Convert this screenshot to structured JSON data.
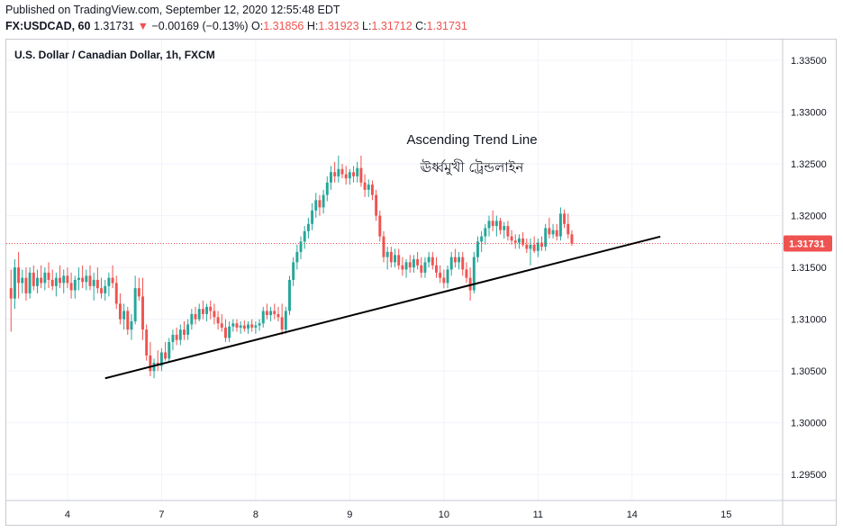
{
  "header": {
    "published": "Published on TradingView.com, September 12, 2020 12:55:48 EDT",
    "symbol": "FX:USDCAD, 60",
    "last": "1.31731",
    "change_arrow": "▼",
    "change": "−0.00169 (−0.13%)",
    "o_label": "O:",
    "o_value": "1.31856",
    "h_label": "H:",
    "h_value": "1.31923",
    "l_label": "L:",
    "l_value": "1.31712",
    "c_label": "C:",
    "c_value": "1.31731"
  },
  "colors": {
    "up": "#26a69a",
    "down": "#ef5350",
    "trendline": "#000000",
    "price_tag": "#ef5350",
    "border": "#c7cad1"
  },
  "chart_data": {
    "type": "candlestick",
    "title": "U.S. Dollar / Canadian Dollar, 1h, FXCM",
    "ylim": [
      1.2925,
      1.337
    ],
    "y_ticks": [
      "1.33500",
      "1.33000",
      "1.32500",
      "1.32000",
      "1.31500",
      "1.31000",
      "1.30500",
      "1.30000",
      "1.29500"
    ],
    "x_ticks": [
      "4",
      "7",
      "8",
      "9",
      "10",
      "11",
      "14",
      "15"
    ],
    "x_tick_index": [
      4,
      14,
      24,
      34,
      44,
      54,
      64,
      74
    ],
    "x_range": [
      -2.5,
      80
    ],
    "last_price": "1.31731",
    "annotations": [
      "Ascending Trend Line",
      "ঊর্ধ্বমুখী ট্রেন্ডলাইন"
    ],
    "trendline": {
      "start": [
        8.0,
        1.3043
      ],
      "end": [
        67.0,
        1.31798
      ]
    },
    "candles": [
      [
        -2.0,
        1.313,
        1.3148,
        1.3088,
        1.312
      ],
      [
        -1.6,
        1.312,
        1.3158,
        1.311,
        1.315
      ],
      [
        -1.2,
        1.315,
        1.3165,
        1.312,
        1.3135
      ],
      [
        -0.8,
        1.3135,
        1.3148,
        1.3125,
        1.314
      ],
      [
        -0.4,
        1.314,
        1.315,
        1.3118,
        1.3125
      ],
      [
        0.0,
        1.3125,
        1.315,
        1.312,
        1.3145
      ],
      [
        0.4,
        1.3145,
        1.3152,
        1.3128,
        1.3132
      ],
      [
        0.8,
        1.3132,
        1.3148,
        1.3125,
        1.314
      ],
      [
        1.2,
        1.314,
        1.3152,
        1.313,
        1.3135
      ],
      [
        1.6,
        1.3135,
        1.315,
        1.3128,
        1.3145
      ],
      [
        2.0,
        1.3145,
        1.3155,
        1.313,
        1.3138
      ],
      [
        2.4,
        1.3138,
        1.3148,
        1.3128,
        1.3132
      ],
      [
        2.8,
        1.3132,
        1.3145,
        1.3122,
        1.314
      ],
      [
        3.2,
        1.314,
        1.3152,
        1.313,
        1.3135
      ],
      [
        3.6,
        1.3135,
        1.3148,
        1.3125,
        1.3142
      ],
      [
        4.0,
        1.3142,
        1.315,
        1.313,
        1.3135
      ],
      [
        4.4,
        1.3135,
        1.3145,
        1.312,
        1.3128
      ],
      [
        4.8,
        1.3128,
        1.3142,
        1.312,
        1.3138
      ],
      [
        5.2,
        1.3138,
        1.315,
        1.3128,
        1.314
      ],
      [
        5.6,
        1.314,
        1.3152,
        1.313,
        1.3136
      ],
      [
        6.0,
        1.3136,
        1.3148,
        1.3128,
        1.3142
      ],
      [
        6.4,
        1.3142,
        1.3152,
        1.3128,
        1.3132
      ],
      [
        6.8,
        1.3132,
        1.3145,
        1.3118,
        1.3138
      ],
      [
        7.2,
        1.3138,
        1.315,
        1.3125,
        1.313
      ],
      [
        7.6,
        1.313,
        1.314,
        1.312,
        1.3125
      ],
      [
        8.0,
        1.3125,
        1.3138,
        1.3118,
        1.3132
      ],
      [
        8.4,
        1.3132,
        1.3145,
        1.3122,
        1.314
      ],
      [
        8.8,
        1.314,
        1.3152,
        1.313,
        1.3135
      ],
      [
        9.2,
        1.3135,
        1.3142,
        1.311,
        1.3115
      ],
      [
        9.6,
        1.3115,
        1.3125,
        1.3095,
        1.31
      ],
      [
        10.0,
        1.31,
        1.3115,
        1.309,
        1.3108
      ],
      [
        10.4,
        1.3108,
        1.3112,
        1.3085,
        1.309
      ],
      [
        10.8,
        1.309,
        1.3105,
        1.308,
        1.3098
      ],
      [
        11.2,
        1.3098,
        1.3142,
        1.3095,
        1.313
      ],
      [
        11.6,
        1.313,
        1.314,
        1.3118,
        1.3122
      ],
      [
        12.0,
        1.3122,
        1.314,
        1.308,
        1.309
      ],
      [
        12.4,
        1.309,
        1.3095,
        1.306,
        1.3065
      ],
      [
        12.8,
        1.3065,
        1.3078,
        1.3045,
        1.305
      ],
      [
        13.2,
        1.305,
        1.3062,
        1.3043,
        1.3058
      ],
      [
        13.6,
        1.3058,
        1.307,
        1.305,
        1.3055
      ],
      [
        14.0,
        1.3055,
        1.3072,
        1.305,
        1.3068
      ],
      [
        14.4,
        1.3068,
        1.3078,
        1.306,
        1.3062
      ],
      [
        14.8,
        1.3062,
        1.3082,
        1.3058,
        1.3078
      ],
      [
        15.2,
        1.3078,
        1.309,
        1.307,
        1.3085
      ],
      [
        15.6,
        1.3085,
        1.3092,
        1.3075,
        1.308
      ],
      [
        16.0,
        1.308,
        1.3095,
        1.3075,
        1.309
      ],
      [
        16.4,
        1.309,
        1.3098,
        1.308,
        1.3085
      ],
      [
        16.8,
        1.3085,
        1.31,
        1.308,
        1.3095
      ],
      [
        17.2,
        1.3095,
        1.311,
        1.309,
        1.3105
      ],
      [
        17.6,
        1.3105,
        1.3112,
        1.3095,
        1.31
      ],
      [
        18.0,
        1.31,
        1.3115,
        1.3098,
        1.311
      ],
      [
        18.4,
        1.311,
        1.3118,
        1.31,
        1.3105
      ],
      [
        18.8,
        1.3105,
        1.3115,
        1.3098,
        1.3112
      ],
      [
        19.2,
        1.3112,
        1.3118,
        1.31,
        1.3108
      ],
      [
        19.6,
        1.3108,
        1.3115,
        1.3095,
        1.3102
      ],
      [
        20.0,
        1.3102,
        1.3108,
        1.309,
        1.3096
      ],
      [
        20.4,
        1.3096,
        1.3105,
        1.3088,
        1.3092
      ],
      [
        20.8,
        1.3092,
        1.31,
        1.3078,
        1.3082
      ],
      [
        21.2,
        1.3082,
        1.3098,
        1.3078,
        1.3093
      ],
      [
        21.6,
        1.3093,
        1.31,
        1.3088,
        1.3096
      ],
      [
        22.0,
        1.3096,
        1.31,
        1.3088,
        1.3092
      ],
      [
        22.4,
        1.3092,
        1.3098,
        1.3086,
        1.3094
      ],
      [
        22.8,
        1.3094,
        1.3099,
        1.3088,
        1.3091
      ],
      [
        23.2,
        1.3091,
        1.3098,
        1.3086,
        1.3095
      ],
      [
        23.6,
        1.3095,
        1.31,
        1.3088,
        1.3092
      ],
      [
        24.0,
        1.3092,
        1.3098,
        1.3086,
        1.3094
      ],
      [
        24.4,
        1.3094,
        1.31,
        1.3089,
        1.3096
      ],
      [
        24.8,
        1.3096,
        1.3112,
        1.3092,
        1.3108
      ],
      [
        25.2,
        1.3108,
        1.3115,
        1.31,
        1.3104
      ],
      [
        25.6,
        1.3104,
        1.3112,
        1.3098,
        1.3108
      ],
      [
        26.0,
        1.3108,
        1.3115,
        1.31,
        1.3105
      ],
      [
        26.4,
        1.3105,
        1.3112,
        1.3098,
        1.3102
      ],
      [
        26.8,
        1.3102,
        1.3115,
        1.3085,
        1.309
      ],
      [
        27.2,
        1.309,
        1.3112,
        1.3086,
        1.3108
      ],
      [
        27.6,
        1.3108,
        1.3142,
        1.3104,
        1.3138
      ],
      [
        28.0,
        1.3138,
        1.316,
        1.3132,
        1.3155
      ],
      [
        28.4,
        1.3155,
        1.3172,
        1.3148,
        1.3165
      ],
      [
        28.8,
        1.3165,
        1.318,
        1.3158,
        1.3175
      ],
      [
        29.2,
        1.3175,
        1.319,
        1.3168,
        1.3185
      ],
      [
        29.6,
        1.3185,
        1.3198,
        1.3178,
        1.3192
      ],
      [
        30.0,
        1.3192,
        1.3212,
        1.3186,
        1.3205
      ],
      [
        30.4,
        1.3205,
        1.3222,
        1.3198,
        1.3215
      ],
      [
        30.8,
        1.3215,
        1.322,
        1.32,
        1.3208
      ],
      [
        31.2,
        1.3208,
        1.3225,
        1.3202,
        1.322
      ],
      [
        31.6,
        1.322,
        1.3238,
        1.3214,
        1.3232
      ],
      [
        32.0,
        1.3232,
        1.3248,
        1.3225,
        1.3242
      ],
      [
        32.4,
        1.3242,
        1.3252,
        1.3232,
        1.3238
      ],
      [
        32.8,
        1.3238,
        1.3258,
        1.3232,
        1.3245
      ],
      [
        33.2,
        1.3245,
        1.325,
        1.3236,
        1.324
      ],
      [
        33.6,
        1.324,
        1.3248,
        1.323,
        1.3236
      ],
      [
        34.0,
        1.3236,
        1.3245,
        1.323,
        1.3242
      ],
      [
        34.4,
        1.3242,
        1.3248,
        1.3232,
        1.3238
      ],
      [
        34.8,
        1.3238,
        1.3252,
        1.3232,
        1.3246
      ],
      [
        35.2,
        1.3246,
        1.3258,
        1.3228,
        1.3232
      ],
      [
        35.6,
        1.3232,
        1.324,
        1.3218,
        1.3225
      ],
      [
        36.0,
        1.3225,
        1.3235,
        1.3218,
        1.323
      ],
      [
        36.4,
        1.323,
        1.3234,
        1.3215,
        1.322
      ],
      [
        36.8,
        1.322,
        1.3225,
        1.3195,
        1.32
      ],
      [
        37.2,
        1.32,
        1.3205,
        1.3175,
        1.318
      ],
      [
        37.6,
        1.318,
        1.3185,
        1.3155,
        1.316
      ],
      [
        38.0,
        1.316,
        1.317,
        1.3148,
        1.3165
      ],
      [
        38.4,
        1.3165,
        1.317,
        1.315,
        1.3155
      ],
      [
        38.8,
        1.3155,
        1.3168,
        1.315,
        1.3162
      ],
      [
        39.2,
        1.3162,
        1.3168,
        1.3148,
        1.3152
      ],
      [
        39.6,
        1.3152,
        1.316,
        1.3142,
        1.3148
      ],
      [
        40.0,
        1.3148,
        1.3158,
        1.314,
        1.3155
      ],
      [
        40.4,
        1.3155,
        1.3162,
        1.3145,
        1.315
      ],
      [
        40.8,
        1.315,
        1.3162,
        1.3145,
        1.3158
      ],
      [
        41.2,
        1.3158,
        1.3165,
        1.3148,
        1.3152
      ],
      [
        41.6,
        1.3152,
        1.316,
        1.314,
        1.3145
      ],
      [
        42.0,
        1.3145,
        1.316,
        1.314,
        1.3155
      ],
      [
        42.4,
        1.3155,
        1.3165,
        1.315,
        1.316
      ],
      [
        42.8,
        1.316,
        1.3165,
        1.3148,
        1.3152
      ],
      [
        43.2,
        1.3152,
        1.316,
        1.314,
        1.3145
      ],
      [
        43.6,
        1.3145,
        1.3152,
        1.3135,
        1.314
      ],
      [
        44.0,
        1.314,
        1.3148,
        1.313,
        1.3135
      ],
      [
        44.4,
        1.3135,
        1.3152,
        1.313,
        1.3148
      ],
      [
        44.8,
        1.3148,
        1.3165,
        1.3142,
        1.316
      ],
      [
        45.2,
        1.316,
        1.3168,
        1.315,
        1.3155
      ],
      [
        45.6,
        1.3155,
        1.3165,
        1.3148,
        1.316
      ],
      [
        46.0,
        1.316,
        1.3165,
        1.3142,
        1.3148
      ],
      [
        46.4,
        1.3148,
        1.3155,
        1.3135,
        1.314
      ],
      [
        46.8,
        1.314,
        1.315,
        1.3118,
        1.3128
      ],
      [
        47.2,
        1.3128,
        1.3165,
        1.3125,
        1.316
      ],
      [
        47.6,
        1.316,
        1.318,
        1.3155,
        1.3175
      ],
      [
        48.0,
        1.3175,
        1.3185,
        1.3165,
        1.318
      ],
      [
        48.4,
        1.318,
        1.3192,
        1.3172,
        1.3188
      ],
      [
        48.8,
        1.3188,
        1.32,
        1.318,
        1.3195
      ],
      [
        49.2,
        1.3195,
        1.3205,
        1.3185,
        1.319
      ],
      [
        49.6,
        1.319,
        1.32,
        1.318,
        1.3195
      ],
      [
        50.0,
        1.3195,
        1.3198,
        1.3182,
        1.3186
      ],
      [
        50.4,
        1.3186,
        1.3194,
        1.3178,
        1.319
      ],
      [
        50.8,
        1.319,
        1.3195,
        1.3176,
        1.318
      ],
      [
        51.2,
        1.318,
        1.3186,
        1.3172,
        1.3176
      ],
      [
        51.6,
        1.3176,
        1.3182,
        1.3168,
        1.3174
      ],
      [
        52.0,
        1.3174,
        1.3182,
        1.3168,
        1.3178
      ],
      [
        52.4,
        1.3178,
        1.3184,
        1.317,
        1.3172
      ],
      [
        52.8,
        1.3172,
        1.3178,
        1.3164,
        1.3168
      ],
      [
        53.2,
        1.3168,
        1.3178,
        1.3152,
        1.3172
      ],
      [
        53.6,
        1.3172,
        1.318,
        1.3164,
        1.3166
      ],
      [
        54.0,
        1.3166,
        1.3178,
        1.316,
        1.3174
      ],
      [
        54.4,
        1.3174,
        1.318,
        1.3166,
        1.317
      ],
      [
        54.8,
        1.317,
        1.3192,
        1.3166,
        1.3188
      ],
      [
        55.2,
        1.3188,
        1.3198,
        1.3178,
        1.3182
      ],
      [
        55.6,
        1.3182,
        1.3192,
        1.3178,
        1.3186
      ],
      [
        56.0,
        1.3186,
        1.3192,
        1.3176,
        1.318
      ],
      [
        56.4,
        1.318,
        1.3208,
        1.3176,
        1.3202
      ],
      [
        56.8,
        1.3202,
        1.3206,
        1.3188,
        1.3192
      ],
      [
        57.2,
        1.3192,
        1.3202,
        1.3178,
        1.3182
      ],
      [
        57.6,
        1.3182,
        1.3186,
        1.3171,
        1.3173
      ]
    ]
  }
}
